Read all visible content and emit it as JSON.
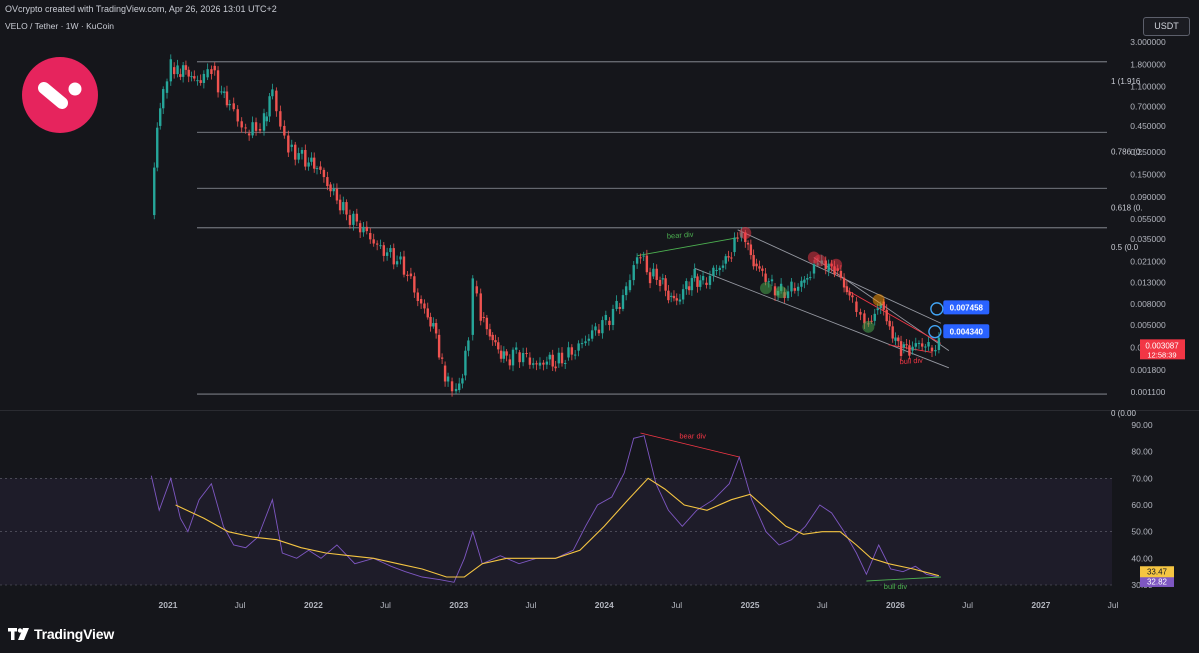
{
  "header": {
    "created_by": "OVcrypto created with TradingView.com, Apr 26, 2026 13:01 UTC+2",
    "pair": "VELO / Tether · 1W · KuCoin",
    "currency": "USDT"
  },
  "footer": {
    "brand": "TradingView"
  },
  "chart_data": [
    {
      "type": "candlestick",
      "title": "VELO / Tether · 1W · KuCoin",
      "y_scale": "log",
      "ylim": [
        0.00095,
        3.0
      ],
      "y_ticks": [
        "3.000000",
        "1.800000",
        "1.100000",
        "0.700000",
        "0.450000",
        "0.250000",
        "0.150000",
        "0.090000",
        "0.055000",
        "0.035000",
        "0.021000",
        "0.013000",
        "0.008000",
        "0.005000",
        "0.003000",
        "0.001800",
        "0.001100"
      ],
      "y_tick_values": [
        3.0,
        1.8,
        1.1,
        0.7,
        0.45,
        0.25,
        0.15,
        0.09,
        0.055,
        0.035,
        0.021,
        0.013,
        0.008,
        0.005,
        0.003,
        0.0018,
        0.0011
      ],
      "x_ticks": [
        "2021",
        "Jul",
        "2022",
        "Jul",
        "2023",
        "Jul",
        "2024",
        "Jul",
        "2025",
        "Jul",
        "2026",
        "Jul",
        "2027",
        "Jul"
      ],
      "x_tick_dates": [
        "2021-01-01",
        "2021-07-01",
        "2022-01-01",
        "2022-07-01",
        "2023-01-01",
        "2023-07-01",
        "2024-01-01",
        "2024-07-01",
        "2025-01-01",
        "2025-07-01",
        "2026-01-01",
        "2026-07-01",
        "2027-01-01",
        "2027-07-01"
      ],
      "colors": {
        "up": "#26a69a",
        "down": "#ef5350",
        "line": "#9598a1",
        "label_red": "#f23645",
        "label_blue": "#2962ff"
      },
      "path": [
        [
          "2020-11-20",
          0.06
        ],
        [
          "2020-12-05",
          0.45
        ],
        [
          "2020-12-20",
          0.95
        ],
        [
          "2021-01-08",
          1.7
        ],
        [
          "2021-01-25",
          1.45
        ],
        [
          "2021-02-15",
          1.6
        ],
        [
          "2021-03-08",
          1.25
        ],
        [
          "2021-04-01",
          1.35
        ],
        [
          "2021-04-20",
          1.75
        ],
        [
          "2021-05-15",
          0.95
        ],
        [
          "2021-06-05",
          0.75
        ],
        [
          "2021-06-25",
          0.5
        ],
        [
          "2021-07-15",
          0.38
        ],
        [
          "2021-08-10",
          0.42
        ],
        [
          "2021-08-30",
          0.5
        ],
        [
          "2021-09-20",
          1.0
        ],
        [
          "2021-10-10",
          0.45
        ],
        [
          "2021-10-30",
          0.28
        ],
        [
          "2021-11-25",
          0.24
        ],
        [
          "2021-12-20",
          0.2
        ],
        [
          "2022-01-10",
          0.18
        ],
        [
          "2022-02-05",
          0.12
        ],
        [
          "2022-03-01",
          0.085
        ],
        [
          "2022-03-25",
          0.06
        ],
        [
          "2022-04-20",
          0.05
        ],
        [
          "2022-05-15",
          0.04
        ],
        [
          "2022-06-10",
          0.03
        ],
        [
          "2022-07-05",
          0.026
        ],
        [
          "2022-07-30",
          0.022
        ],
        [
          "2022-08-25",
          0.016
        ],
        [
          "2022-09-20",
          0.009
        ],
        [
          "2022-10-15",
          0.006
        ],
        [
          "2022-11-05",
          0.004
        ],
        [
          "2022-11-20",
          0.002
        ],
        [
          "2022-12-05",
          0.0014
        ],
        [
          "2022-12-25",
          0.00115
        ],
        [
          "2023-01-10",
          0.0016
        ],
        [
          "2023-01-25",
          0.004
        ],
        [
          "2023-02-05",
          0.012
        ],
        [
          "2023-02-25",
          0.006
        ],
        [
          "2023-03-20",
          0.004
        ],
        [
          "2023-04-10",
          0.0028
        ],
        [
          "2023-05-01",
          0.0023
        ],
        [
          "2023-05-25",
          0.0027
        ],
        [
          "2023-06-20",
          0.0024
        ],
        [
          "2023-07-15",
          0.002
        ],
        [
          "2023-08-10",
          0.0023
        ],
        [
          "2023-09-01",
          0.0021
        ],
        [
          "2023-09-25",
          0.0024
        ],
        [
          "2023-10-20",
          0.0028
        ],
        [
          "2023-11-15",
          0.0035
        ],
        [
          "2023-12-10",
          0.0045
        ],
        [
          "2024-01-05",
          0.0055
        ],
        [
          "2024-02-01",
          0.0075
        ],
        [
          "2024-02-25",
          0.011
        ],
        [
          "2024-03-15",
          0.02
        ],
        [
          "2024-04-01",
          0.024
        ],
        [
          "2024-04-25",
          0.015
        ],
        [
          "2024-05-20",
          0.014
        ],
        [
          "2024-06-10",
          0.0095
        ],
        [
          "2024-07-01",
          0.0085
        ],
        [
          "2024-07-25",
          0.012
        ],
        [
          "2024-08-15",
          0.015
        ],
        [
          "2024-09-05",
          0.013
        ],
        [
          "2024-10-01",
          0.017
        ],
        [
          "2024-10-25",
          0.02
        ],
        [
          "2024-11-15",
          0.026
        ],
        [
          "2024-12-01",
          0.036
        ],
        [
          "2024-12-20",
          0.032
        ],
        [
          "2025-01-10",
          0.02
        ],
        [
          "2025-02-01",
          0.016
        ],
        [
          "2025-02-25",
          0.012
        ],
        [
          "2025-03-20",
          0.0105
        ],
        [
          "2025-04-15",
          0.0115
        ],
        [
          "2025-05-10",
          0.013
        ],
        [
          "2025-06-01",
          0.016
        ],
        [
          "2025-06-20",
          0.02
        ],
        [
          "2025-07-10",
          0.017
        ],
        [
          "2025-08-01",
          0.018
        ],
        [
          "2025-08-25",
          0.012
        ],
        [
          "2025-09-15",
          0.0085
        ],
        [
          "2025-10-05",
          0.0065
        ],
        [
          "2025-10-25",
          0.0055
        ],
        [
          "2025-11-10",
          0.007
        ],
        [
          "2025-11-25",
          0.0085
        ],
        [
          "2025-12-10",
          0.0055
        ],
        [
          "2025-12-25",
          0.0035
        ],
        [
          "2026-01-15",
          0.003
        ],
        [
          "2026-02-05",
          0.0028
        ],
        [
          "2026-03-01",
          0.0033
        ],
        [
          "2026-03-25",
          0.003
        ],
        [
          "2026-04-20",
          0.0031
        ]
      ],
      "fib_levels": [
        {
          "label": "1 (1.916",
          "value": 1.916
        },
        {
          "label": "0.786 (0.",
          "value": 0.39
        },
        {
          "label": "0.618 (0.",
          "value": 0.11
        },
        {
          "label": "0.5 (0.0",
          "value": 0.045
        },
        {
          "label": "0 (0.00",
          "value": 0.00105
        }
      ],
      "trendlines": [
        {
          "from": [
            "2024-12-01",
            0.043
          ],
          "to": [
            "2026-04-25",
            0.0052
          ],
          "color": "#9598a1"
        },
        {
          "from": [
            "2025-06-10",
            0.023
          ],
          "to": [
            "2026-05-15",
            0.0028
          ],
          "color": "#9598a1"
        },
        {
          "from": [
            "2024-08-15",
            0.018
          ],
          "to": [
            "2026-05-15",
            0.0019
          ],
          "color": "#9598a1"
        },
        {
          "from": [
            "2025-09-01",
            0.011
          ],
          "to": [
            "2026-04-25",
            0.0033
          ],
          "color": "#f23645"
        },
        {
          "from": [
            "2024-03-25",
            0.024
          ],
          "to": [
            "2024-12-01",
            0.036
          ],
          "color": "#4caf50"
        },
        {
          "from": [
            "2025-12-15",
            0.0032
          ],
          "to": [
            "2026-04-01",
            0.0027
          ],
          "color": "#f23645"
        }
      ],
      "annotations": [
        {
          "text": "bear div",
          "date": "2024-07-10",
          "value": 0.036,
          "color": "#4caf50"
        },
        {
          "text": "bull div",
          "date": "2026-02-10",
          "value": 0.0021,
          "color": "#f23645"
        }
      ],
      "markers": [
        {
          "date": "2024-12-20",
          "value": 0.04,
          "color": "#f23645"
        },
        {
          "date": "2025-06-10",
          "value": 0.023,
          "color": "#f23645"
        },
        {
          "date": "2025-06-25",
          "value": 0.0215,
          "color": "#f23645"
        },
        {
          "date": "2025-08-05",
          "value": 0.0195,
          "color": "#f23645"
        },
        {
          "date": "2025-11-20",
          "value": 0.0088,
          "color": "#ff9800"
        },
        {
          "date": "2025-02-10",
          "value": 0.0115,
          "color": "#4caf50"
        },
        {
          "date": "2025-03-20",
          "value": 0.0105,
          "color": "#4caf50"
        },
        {
          "date": "2025-10-25",
          "value": 0.0048,
          "color": "#4caf50"
        }
      ],
      "target_circles": [
        {
          "date": "2026-04-15",
          "value": 0.0072
        },
        {
          "date": "2026-04-10",
          "value": 0.0043
        }
      ],
      "price_labels": [
        {
          "text": "0.007458",
          "value": 0.007458,
          "color": "#2962ff",
          "date": "2026-05-01"
        },
        {
          "text": "0.004340",
          "value": 0.00434,
          "color": "#2962ff",
          "date": "2026-05-01"
        }
      ],
      "last_price": {
        "price": "0.003087",
        "countdown": "12:58:39",
        "value": 0.003087
      }
    },
    {
      "type": "line",
      "name": "RSI",
      "ylim": [
        30,
        90
      ],
      "y_ticks": [
        "90.00",
        "80.00",
        "70.00",
        "60.00",
        "50.00",
        "40.00",
        "30.00"
      ],
      "y_tick_values": [
        90,
        80,
        70,
        60,
        50,
        40,
        30
      ],
      "band": [
        30,
        70
      ],
      "series": [
        {
          "key": "rsi",
          "color": "#7e57c2",
          "last": "32.82",
          "points": [
            [
              "2020-11-20",
              71
            ],
            [
              "2020-12-10",
              58
            ],
            [
              "2021-01-08",
              70
            ],
            [
              "2021-02-01",
              55
            ],
            [
              "2021-02-20",
              50
            ],
            [
              "2021-03-20",
              62
            ],
            [
              "2021-04-20",
              68
            ],
            [
              "2021-05-20",
              52
            ],
            [
              "2021-06-15",
              45
            ],
            [
              "2021-07-15",
              44
            ],
            [
              "2021-08-15",
              48
            ],
            [
              "2021-09-20",
              62
            ],
            [
              "2021-10-15",
              42
            ],
            [
              "2021-11-20",
              40
            ],
            [
              "2021-12-20",
              43
            ],
            [
              "2022-01-20",
              40
            ],
            [
              "2022-03-01",
              45
            ],
            [
              "2022-04-15",
              38
            ],
            [
              "2022-06-01",
              40
            ],
            [
              "2022-07-15",
              37
            ],
            [
              "2022-08-20",
              35
            ],
            [
              "2022-10-01",
              33
            ],
            [
              "2022-11-15",
              32
            ],
            [
              "2022-12-20",
              31
            ],
            [
              "2023-01-15",
              40
            ],
            [
              "2023-02-05",
              50
            ],
            [
              "2023-03-01",
              38
            ],
            [
              "2023-04-15",
              41
            ],
            [
              "2023-06-01",
              38
            ],
            [
              "2023-07-15",
              40
            ],
            [
              "2023-09-01",
              40
            ],
            [
              "2023-10-15",
              43
            ],
            [
              "2023-11-15",
              52
            ],
            [
              "2023-12-15",
              60
            ],
            [
              "2024-01-20",
              63
            ],
            [
              "2024-02-20",
              72
            ],
            [
              "2024-03-15",
              85
            ],
            [
              "2024-04-10",
              86
            ],
            [
              "2024-05-10",
              68
            ],
            [
              "2024-06-10",
              58
            ],
            [
              "2024-07-15",
              52
            ],
            [
              "2024-08-20",
              58
            ],
            [
              "2024-10-01",
              62
            ],
            [
              "2024-11-10",
              68
            ],
            [
              "2024-12-05",
              78
            ],
            [
              "2025-01-05",
              62
            ],
            [
              "2025-02-10",
              50
            ],
            [
              "2025-03-15",
              45
            ],
            [
              "2025-04-15",
              47
            ],
            [
              "2025-05-20",
              52
            ],
            [
              "2025-06-25",
              60
            ],
            [
              "2025-07-25",
              57
            ],
            [
              "2025-08-25",
              50
            ],
            [
              "2025-09-25",
              42
            ],
            [
              "2025-10-20",
              34
            ],
            [
              "2025-11-20",
              45
            ],
            [
              "2025-12-20",
              36
            ],
            [
              "2026-01-20",
              35
            ],
            [
              "2026-02-20",
              37
            ],
            [
              "2026-03-20",
              34
            ],
            [
              "2026-04-20",
              33
            ]
          ]
        },
        {
          "key": "rsi_ma",
          "color": "#f5c542",
          "last": "33.47",
          "points": [
            [
              "2021-01-20",
              60
            ],
            [
              "2021-04-01",
              55
            ],
            [
              "2021-06-01",
              50
            ],
            [
              "2021-08-01",
              48
            ],
            [
              "2021-10-01",
              47
            ],
            [
              "2021-12-01",
              44
            ],
            [
              "2022-02-01",
              42
            ],
            [
              "2022-04-01",
              41
            ],
            [
              "2022-06-01",
              40
            ],
            [
              "2022-08-01",
              38
            ],
            [
              "2022-10-01",
              36
            ],
            [
              "2022-12-01",
              33
            ],
            [
              "2023-01-15",
              33
            ],
            [
              "2023-03-01",
              38
            ],
            [
              "2023-05-01",
              40
            ],
            [
              "2023-07-01",
              40
            ],
            [
              "2023-09-01",
              40
            ],
            [
              "2023-11-01",
              43
            ],
            [
              "2024-01-01",
              52
            ],
            [
              "2024-03-01",
              62
            ],
            [
              "2024-04-20",
              70
            ],
            [
              "2024-06-01",
              66
            ],
            [
              "2024-07-20",
              60
            ],
            [
              "2024-09-15",
              58
            ],
            [
              "2024-11-15",
              62
            ],
            [
              "2025-01-01",
              64
            ],
            [
              "2025-02-15",
              58
            ],
            [
              "2025-04-01",
              52
            ],
            [
              "2025-05-15",
              49
            ],
            [
              "2025-07-01",
              50
            ],
            [
              "2025-08-15",
              50
            ],
            [
              "2025-09-25",
              45
            ],
            [
              "2025-11-01",
              40
            ],
            [
              "2025-12-15",
              38
            ],
            [
              "2026-02-15",
              36
            ],
            [
              "2026-04-20",
              33.5
            ]
          ]
        }
      ],
      "trendlines": [
        {
          "from": [
            "2024-04-01",
            87
          ],
          "to": [
            "2024-12-05",
            78
          ],
          "color": "#f23645"
        },
        {
          "from": [
            "2025-10-20",
            31.5
          ],
          "to": [
            "2026-04-25",
            33
          ],
          "color": "#4caf50"
        }
      ],
      "annotations": [
        {
          "text": "bear div",
          "date": "2024-08-10",
          "value": 85,
          "color": "#f23645"
        },
        {
          "text": "bull div",
          "date": "2026-01-01",
          "value": 28.5,
          "color": "#4caf50"
        }
      ]
    }
  ]
}
